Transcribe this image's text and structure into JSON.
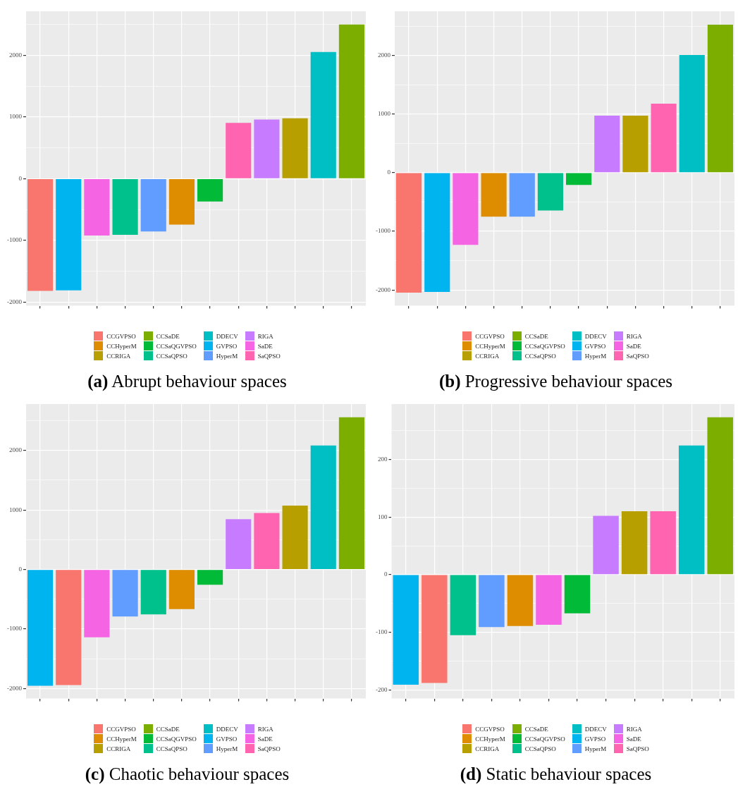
{
  "chart_data": [
    {
      "type": "bar",
      "title": "(a) Abrupt behaviour spaces",
      "categories": [
        null,
        null,
        null,
        null,
        null,
        null,
        null,
        null,
        null,
        null,
        null,
        null
      ],
      "ylim": [
        -2060,
        2715
      ],
      "yticks": [
        {
          "value": -2000,
          "label": "-2000"
        },
        {
          "value": -1500,
          "label": null
        },
        {
          "value": -1000,
          "label": "-1000"
        },
        {
          "value": -500,
          "label": null
        },
        0,
        {
          "value": 500,
          "label": null
        },
        1000,
        {
          "value": 1500,
          "label": null
        },
        2000,
        {
          "value": 2500,
          "label": null
        }
      ],
      "grid": true,
      "legend": "bottom",
      "series": [
        {
          "name": "CCGVPSO",
          "color": "#f8766d",
          "values": [
            -1820,
            null,
            null,
            null,
            null,
            null,
            null,
            null,
            null,
            null,
            null,
            null
          ]
        },
        {
          "name": "CCHyperM",
          "color": "#de8c00",
          "values": [
            null,
            null,
            null,
            null,
            null,
            -745,
            null,
            null,
            null,
            null,
            null,
            null
          ]
        },
        {
          "name": "CCRIGA",
          "color": "#b79f00",
          "values": [
            null,
            null,
            null,
            null,
            null,
            null,
            null,
            null,
            null,
            980,
            null,
            null
          ]
        },
        {
          "name": "CCSaDE",
          "color": "#7cae00",
          "values": [
            null,
            null,
            null,
            null,
            null,
            null,
            null,
            null,
            null,
            null,
            null,
            2500
          ]
        },
        {
          "name": "CCSaQGVPSO",
          "color": "#00ba38",
          "values": [
            null,
            null,
            null,
            null,
            null,
            null,
            -370,
            null,
            null,
            null,
            null,
            null
          ]
        },
        {
          "name": "CCSaQPSO",
          "color": "#00c08b",
          "values": [
            null,
            null,
            null,
            -910,
            null,
            null,
            null,
            null,
            null,
            null,
            null,
            null
          ]
        },
        {
          "name": "DDECV",
          "color": "#00bfc4",
          "values": [
            null,
            null,
            null,
            null,
            null,
            null,
            null,
            null,
            null,
            null,
            2055,
            null
          ]
        },
        {
          "name": "GVPSO",
          "color": "#00b4f0",
          "values": [
            null,
            -1810,
            null,
            null,
            null,
            null,
            null,
            null,
            null,
            null,
            null,
            null
          ]
        },
        {
          "name": "HyperM",
          "color": "#619cff",
          "values": [
            null,
            null,
            null,
            null,
            -855,
            null,
            null,
            null,
            null,
            null,
            null,
            null
          ]
        },
        {
          "name": "RIGA",
          "color": "#c77cff",
          "values": [
            null,
            null,
            null,
            null,
            null,
            null,
            null,
            null,
            960,
            null,
            null,
            null
          ]
        },
        {
          "name": "SaDE",
          "color": "#f564e3",
          "values": [
            null,
            null,
            -920,
            null,
            null,
            null,
            null,
            null,
            null,
            null,
            null,
            null
          ]
        },
        {
          "name": "SaQPSO",
          "color": "#ff64b0",
          "values": [
            null,
            null,
            null,
            null,
            null,
            null,
            null,
            905,
            null,
            null,
            null,
            null
          ]
        }
      ]
    },
    {
      "type": "bar",
      "title": "(b) Progressive behaviour spaces",
      "categories": [
        null,
        null,
        null,
        null,
        null,
        null,
        null,
        null,
        null,
        null,
        null,
        null
      ],
      "ylim": [
        -2270,
        2755
      ],
      "yticks": [
        {
          "value": -2000,
          "label": "-2000"
        },
        {
          "value": -1500,
          "label": null
        },
        {
          "value": -1000,
          "label": "-1000"
        },
        {
          "value": -500,
          "label": null
        },
        0,
        {
          "value": 500,
          "label": null
        },
        1000,
        {
          "value": 1500,
          "label": null
        },
        2000,
        {
          "value": 2500,
          "label": null
        }
      ],
      "grid": true,
      "legend": "bottom",
      "series": [
        {
          "name": "CCGVPSO",
          "color": "#f8766d",
          "values": [
            -2045,
            null,
            null,
            null,
            null,
            null,
            null,
            null,
            null,
            null,
            null,
            null
          ]
        },
        {
          "name": "CCHyperM",
          "color": "#de8c00",
          "values": [
            null,
            null,
            null,
            -750,
            null,
            null,
            null,
            null,
            null,
            null,
            null,
            null
          ]
        },
        {
          "name": "CCRIGA",
          "color": "#b79f00",
          "values": [
            null,
            null,
            null,
            null,
            null,
            null,
            null,
            null,
            975,
            null,
            null,
            null
          ]
        },
        {
          "name": "CCSaDE",
          "color": "#7cae00",
          "values": [
            null,
            null,
            null,
            null,
            null,
            null,
            null,
            null,
            null,
            null,
            null,
            2525
          ]
        },
        {
          "name": "CCSaQGVPSO",
          "color": "#00ba38",
          "values": [
            null,
            null,
            null,
            null,
            null,
            null,
            -207,
            null,
            null,
            null,
            null,
            null
          ]
        },
        {
          "name": "CCSaQPSO",
          "color": "#00c08b",
          "values": [
            null,
            null,
            null,
            null,
            null,
            -645,
            null,
            null,
            null,
            null,
            null,
            null
          ]
        },
        {
          "name": "DDECV",
          "color": "#00bfc4",
          "values": [
            null,
            null,
            null,
            null,
            null,
            null,
            null,
            null,
            null,
            null,
            2008,
            null
          ]
        },
        {
          "name": "GVPSO",
          "color": "#00b4f0",
          "values": [
            null,
            -2035,
            null,
            null,
            null,
            null,
            null,
            null,
            null,
            null,
            null,
            null
          ]
        },
        {
          "name": "HyperM",
          "color": "#619cff",
          "values": [
            null,
            null,
            null,
            null,
            -750,
            null,
            null,
            null,
            null,
            null,
            null,
            null
          ]
        },
        {
          "name": "RIGA",
          "color": "#c77cff",
          "values": [
            null,
            null,
            null,
            null,
            null,
            null,
            null,
            975,
            null,
            null,
            null,
            null
          ]
        },
        {
          "name": "SaDE",
          "color": "#f564e3",
          "values": [
            null,
            null,
            -1230,
            null,
            null,
            null,
            null,
            null,
            null,
            null,
            null,
            null
          ]
        },
        {
          "name": "SaQPSO",
          "color": "#ff64b0",
          "values": [
            null,
            null,
            null,
            null,
            null,
            null,
            null,
            null,
            null,
            1180,
            null,
            null
          ]
        }
      ]
    },
    {
      "type": "bar",
      "title": "(c) Chaotic behaviour spaces",
      "categories": [
        null,
        null,
        null,
        null,
        null,
        null,
        null,
        null,
        null,
        null,
        null,
        null
      ],
      "ylim": [
        -2170,
        2780
      ],
      "yticks": [
        {
          "value": -2000,
          "label": "-2000"
        },
        {
          "value": -1500,
          "label": null
        },
        {
          "value": -1000,
          "label": "-1000"
        },
        {
          "value": -500,
          "label": null
        },
        0,
        {
          "value": 500,
          "label": null
        },
        1000,
        {
          "value": 1500,
          "label": null
        },
        2000,
        {
          "value": 2500,
          "label": null
        }
      ],
      "grid": true,
      "legend": "bottom",
      "series": [
        {
          "name": "CCGVPSO",
          "color": "#f8766d",
          "values": [
            null,
            -1945,
            null,
            null,
            null,
            null,
            null,
            null,
            null,
            null,
            null,
            null
          ]
        },
        {
          "name": "CCHyperM",
          "color": "#de8c00",
          "values": [
            null,
            null,
            null,
            null,
            null,
            -665,
            null,
            null,
            null,
            null,
            null,
            null
          ]
        },
        {
          "name": "CCRIGA",
          "color": "#b79f00",
          "values": [
            null,
            null,
            null,
            null,
            null,
            null,
            null,
            null,
            null,
            1072,
            null,
            null
          ]
        },
        {
          "name": "CCSaDE",
          "color": "#7cae00",
          "values": [
            null,
            null,
            null,
            null,
            null,
            null,
            null,
            null,
            null,
            null,
            null,
            2558
          ]
        },
        {
          "name": "CCSaQGVPSO",
          "color": "#00ba38",
          "values": [
            null,
            null,
            null,
            null,
            null,
            null,
            -257,
            null,
            null,
            null,
            null,
            null
          ]
        },
        {
          "name": "CCSaQPSO",
          "color": "#00c08b",
          "values": [
            null,
            null,
            null,
            null,
            -755,
            null,
            null,
            null,
            null,
            null,
            null,
            null
          ]
        },
        {
          "name": "DDECV",
          "color": "#00bfc4",
          "values": [
            null,
            null,
            null,
            null,
            null,
            null,
            null,
            null,
            null,
            null,
            2083,
            null
          ]
        },
        {
          "name": "GVPSO",
          "color": "#00b4f0",
          "values": [
            -1955,
            null,
            null,
            null,
            null,
            null,
            null,
            null,
            null,
            null,
            null,
            null
          ]
        },
        {
          "name": "HyperM",
          "color": "#619cff",
          "values": [
            null,
            null,
            null,
            -790,
            null,
            null,
            null,
            null,
            null,
            null,
            null,
            null
          ]
        },
        {
          "name": "RIGA",
          "color": "#c77cff",
          "values": [
            null,
            null,
            null,
            null,
            null,
            null,
            null,
            845,
            null,
            null,
            null,
            null
          ]
        },
        {
          "name": "SaDE",
          "color": "#f564e3",
          "values": [
            null,
            null,
            -1140,
            null,
            null,
            null,
            null,
            null,
            null,
            null,
            null,
            null
          ]
        },
        {
          "name": "SaQPSO",
          "color": "#ff64b0",
          "values": [
            null,
            null,
            null,
            null,
            null,
            null,
            null,
            null,
            950,
            null,
            null,
            null
          ]
        }
      ]
    },
    {
      "type": "bar",
      "title": "(d) Static behaviour spaces",
      "categories": [
        null,
        null,
        null,
        null,
        null,
        null,
        null,
        null,
        null,
        null,
        null,
        null
      ],
      "ylim": [
        -215,
        296
      ],
      "yticks": [
        {
          "value": -200,
          "label": "-200"
        },
        {
          "value": -150,
          "label": null
        },
        {
          "value": -100,
          "label": "-100"
        },
        {
          "value": -50,
          "label": null
        },
        0,
        {
          "value": 50,
          "label": null
        },
        100,
        {
          "value": 150,
          "label": null
        },
        200,
        {
          "value": 250,
          "label": null
        }
      ],
      "grid": true,
      "legend": "bottom",
      "series": [
        {
          "name": "CCGVPSO",
          "color": "#f8766d",
          "values": [
            null,
            -188,
            null,
            null,
            null,
            null,
            null,
            null,
            null,
            null,
            null,
            null
          ]
        },
        {
          "name": "CCHyperM",
          "color": "#de8c00",
          "values": [
            null,
            null,
            null,
            null,
            -89,
            null,
            null,
            null,
            null,
            null,
            null,
            null
          ]
        },
        {
          "name": "CCRIGA",
          "color": "#b79f00",
          "values": [
            null,
            null,
            null,
            null,
            null,
            null,
            null,
            null,
            110,
            null,
            null,
            null
          ]
        },
        {
          "name": "CCSaDE",
          "color": "#7cae00",
          "values": [
            null,
            null,
            null,
            null,
            null,
            null,
            null,
            null,
            null,
            null,
            null,
            273
          ]
        },
        {
          "name": "CCSaQGVPSO",
          "color": "#00ba38",
          "values": [
            null,
            null,
            null,
            null,
            null,
            null,
            -67,
            null,
            null,
            null,
            null,
            null
          ]
        },
        {
          "name": "CCSaQPSO",
          "color": "#00c08b",
          "values": [
            null,
            null,
            -105,
            null,
            null,
            null,
            null,
            null,
            null,
            null,
            null,
            null
          ]
        },
        {
          "name": "DDECV",
          "color": "#00bfc4",
          "values": [
            null,
            null,
            null,
            null,
            null,
            null,
            null,
            null,
            null,
            null,
            224,
            null
          ]
        },
        {
          "name": "GVPSO",
          "color": "#00b4f0",
          "values": [
            -191,
            null,
            null,
            null,
            null,
            null,
            null,
            null,
            null,
            null,
            null,
            null
          ]
        },
        {
          "name": "HyperM",
          "color": "#619cff",
          "values": [
            null,
            null,
            null,
            -91,
            null,
            null,
            null,
            null,
            null,
            null,
            null,
            null
          ]
        },
        {
          "name": "RIGA",
          "color": "#c77cff",
          "values": [
            null,
            null,
            null,
            null,
            null,
            null,
            null,
            102,
            null,
            null,
            null,
            null
          ]
        },
        {
          "name": "SaDE",
          "color": "#f564e3",
          "values": [
            null,
            null,
            null,
            null,
            null,
            -87,
            null,
            null,
            null,
            null,
            null,
            null
          ]
        },
        {
          "name": "SaQPSO",
          "color": "#ff64b0",
          "values": [
            null,
            null,
            null,
            null,
            null,
            null,
            null,
            null,
            null,
            110,
            null,
            null
          ]
        }
      ]
    }
  ]
}
